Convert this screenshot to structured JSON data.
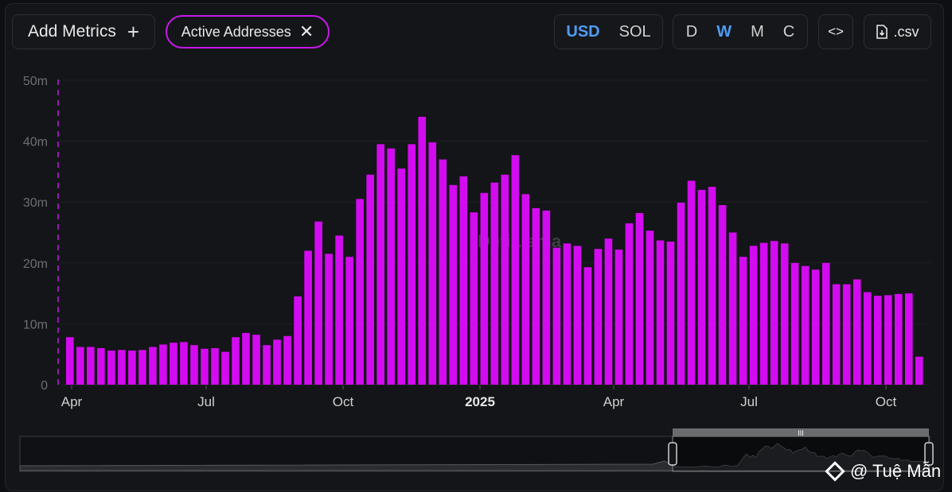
{
  "toolbar": {
    "add_metrics_label": "Add Metrics",
    "add_icon": "+",
    "metric_chip_label": "Active Addresses",
    "chip_close_icon": "✕",
    "currency_options": [
      "USD",
      "SOL"
    ],
    "currency_selected": "USD",
    "period_options": [
      "D",
      "W",
      "M",
      "C"
    ],
    "period_selected": "W",
    "embed_label": "<>",
    "csv_label": ".csv"
  },
  "watermark": {
    "text": "@ Tuệ Mẫn",
    "logo_text": "DefiLlama"
  },
  "colors": {
    "bar": "#d30bf0",
    "accent": "#4f9cf5",
    "chip_border": "#c419e8"
  },
  "chart_data": {
    "type": "bar",
    "title": "",
    "xlabel": "",
    "ylabel": "",
    "ylim": [
      0,
      50000000
    ],
    "y_ticks": [
      "0",
      "10m",
      "20m",
      "30m",
      "40m",
      "50m"
    ],
    "x_ticks": [
      "Apr",
      "Jul",
      "Oct",
      "2025",
      "Apr",
      "Jul",
      "Oct"
    ],
    "x_ticks_bold": [
      false,
      false,
      false,
      true,
      false,
      false,
      false
    ],
    "grid": true,
    "legend": "none",
    "series": [
      {
        "values": [
          7.8,
          6.2,
          6.2,
          6.0,
          5.6,
          5.7,
          5.6,
          5.7,
          6.2,
          6.6,
          6.9,
          7.0,
          6.5,
          5.9,
          6.0,
          5.4,
          7.8,
          8.5,
          8.2,
          6.5,
          7.4,
          8.0,
          14.5,
          22.0,
          26.8,
          21.5,
          24.5,
          21.0,
          30.5,
          34.5,
          39.5,
          38.8,
          35.5,
          39.5,
          44.0,
          39.8,
          37.0,
          32.8,
          34.2,
          28.3,
          31.5,
          33.2,
          34.5,
          37.7,
          31.3,
          29.0,
          28.6,
          22.5,
          23.2,
          22.8,
          19.3,
          22.3,
          24.0,
          22.2,
          26.5,
          28.2,
          25.3,
          23.7,
          23.5,
          29.9,
          33.5,
          32.0,
          32.5,
          29.5,
          25.0,
          21.0,
          22.8,
          23.3,
          23.6,
          23.2,
          20.0,
          19.5,
          18.9,
          20.0,
          16.5,
          16.5,
          17.3,
          15.2,
          14.6,
          14.7,
          14.9,
          15.0,
          4.6
        ]
      }
    ]
  }
}
